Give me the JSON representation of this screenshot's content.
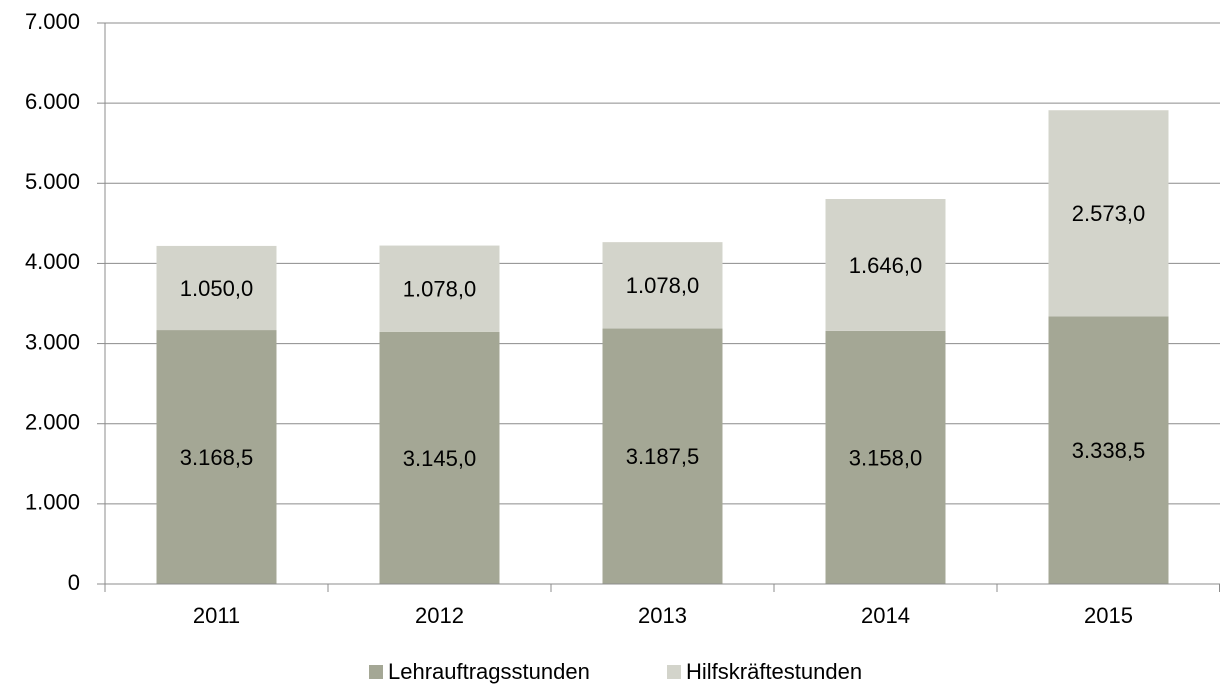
{
  "chart_data": {
    "type": "stacked_bar",
    "categories": [
      "2011",
      "2012",
      "2013",
      "2014",
      "2015"
    ],
    "series": [
      {
        "name": "Lehrauftragsstunden",
        "color": "#a4a795",
        "values": [
          3168.5,
          3145.0,
          3187.5,
          3158.0,
          3338.5
        ],
        "value_labels": [
          "3.168,5",
          "3.145,0",
          "3.187,5",
          "3.158,0",
          "3.338,5"
        ]
      },
      {
        "name": "Hilfskräftestunden",
        "color": "#d3d4cb",
        "values": [
          1050.0,
          1078.0,
          1078.0,
          1646.0,
          2573.0
        ],
        "value_labels": [
          "1.050,0",
          "1.078,0",
          "1.078,0",
          "1.646,0",
          "2.573,0"
        ]
      }
    ],
    "ylim": [
      0,
      7000
    ],
    "yticks": [
      0,
      {
        "value": 1000,
        "label": "1.000"
      },
      {
        "value": 2000,
        "label": "2.000"
      },
      {
        "value": 3000,
        "label": "3.000"
      },
      {
        "value": 4000,
        "label": "4.000"
      },
      {
        "value": 5000,
        "label": "5.000"
      },
      {
        "value": 6000,
        "label": "6.000"
      },
      {
        "value": 7000,
        "label": "7.000"
      }
    ],
    "grid": true,
    "legend": "bottom"
  }
}
